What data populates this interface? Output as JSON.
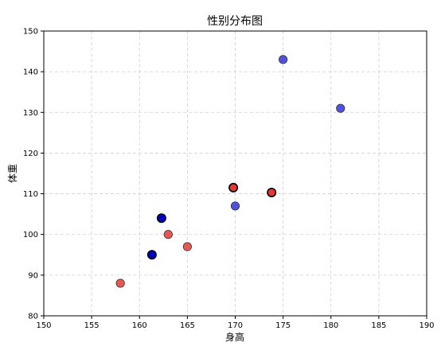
{
  "chart_data": {
    "type": "scatter",
    "title": "性别分布图",
    "xlabel": "身高",
    "ylabel": "体重",
    "xlim": [
      150,
      190
    ],
    "ylim": [
      80,
      150
    ],
    "xticks": [
      150,
      155,
      160,
      165,
      170,
      175,
      180,
      185,
      190
    ],
    "yticks": [
      80,
      90,
      100,
      110,
      120,
      130,
      140,
      150
    ],
    "grid": true,
    "colors": {
      "red": "#e53935",
      "blue": "#3333dd",
      "dark_blue": "#0000cc"
    },
    "points": [
      {
        "x": 158,
        "y": 88,
        "color": "red",
        "highlighted": false
      },
      {
        "x": 163,
        "y": 100,
        "color": "red",
        "highlighted": false
      },
      {
        "x": 165,
        "y": 97,
        "color": "red",
        "highlighted": false
      },
      {
        "x": 169.8,
        "y": 111.5,
        "color": "red",
        "highlighted": true
      },
      {
        "x": 173.8,
        "y": 110.3,
        "color": "red",
        "highlighted": true
      },
      {
        "x": 161.3,
        "y": 95,
        "color": "dark_blue",
        "highlighted": true
      },
      {
        "x": 162.3,
        "y": 104,
        "color": "dark_blue",
        "highlighted": true
      },
      {
        "x": 170,
        "y": 107,
        "color": "blue",
        "highlighted": false
      },
      {
        "x": 175,
        "y": 143,
        "color": "blue",
        "highlighted": false
      },
      {
        "x": 181,
        "y": 131,
        "color": "blue",
        "highlighted": false
      }
    ]
  }
}
